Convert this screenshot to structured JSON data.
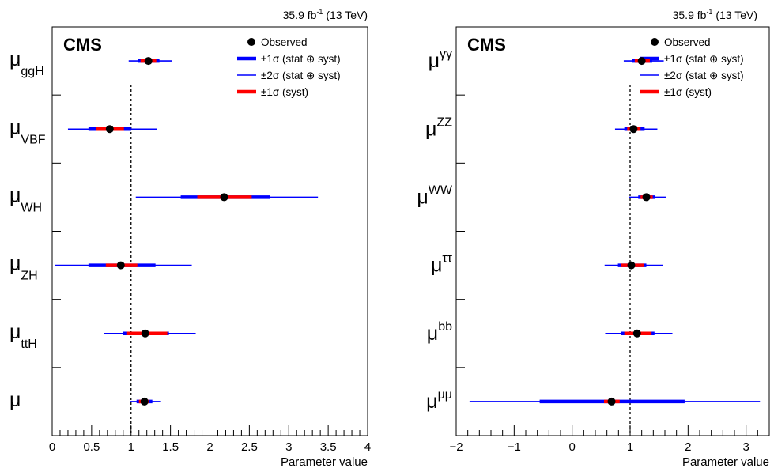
{
  "chart_data": [
    {
      "type": "errorbar",
      "header": "35.9 fb^-1 (13 TeV)",
      "lumi": "35.9 fb",
      "lumi_exp": "-1",
      "energy": "(13 TeV)",
      "experiment": "CMS",
      "xlabel": "Parameter value",
      "xlim": [
        0,
        4
      ],
      "xticks": [
        "0",
        "0.5",
        "1",
        "1.5",
        "2",
        "2.5",
        "3",
        "3.5",
        "4"
      ],
      "xticks_values": [
        0,
        0.5,
        1,
        1.5,
        2,
        2.5,
        3,
        3.5,
        4
      ],
      "reference_line": 1,
      "legend": {
        "placement": "top-right",
        "entries": [
          {
            "label": "Observed",
            "style": "marker"
          },
          {
            "label": "±1σ (stat ⊕ syst)",
            "style": "thick-blue"
          },
          {
            "label": "±2σ (stat ⊕ syst)",
            "style": "thin-blue"
          },
          {
            "label": "±1σ (syst)",
            "style": "thick-red"
          }
        ]
      },
      "points": [
        {
          "label": "μ",
          "sub": "ggH",
          "sup": "",
          "value": 1.22,
          "stat_syst_1s": [
            1.09,
            1.36
          ],
          "stat_syst_2s": [
            0.97,
            1.52
          ],
          "syst_1s": [
            1.12,
            1.32
          ]
        },
        {
          "label": "μ",
          "sub": "VBF",
          "sup": "",
          "value": 0.73,
          "stat_syst_1s": [
            0.46,
            1.0
          ],
          "stat_syst_2s": [
            0.2,
            1.33
          ],
          "syst_1s": [
            0.56,
            0.91
          ]
        },
        {
          "label": "μ",
          "sub": "WH",
          "sup": "",
          "value": 2.18,
          "stat_syst_1s": [
            1.63,
            2.76
          ],
          "stat_syst_2s": [
            1.06,
            3.37
          ],
          "syst_1s": [
            1.84,
            2.53
          ]
        },
        {
          "label": "μ",
          "sub": "ZH",
          "sup": "",
          "value": 0.87,
          "stat_syst_1s": [
            0.46,
            1.31
          ],
          "stat_syst_2s": [
            0.03,
            1.77
          ],
          "syst_1s": [
            0.68,
            1.08
          ]
        },
        {
          "label": "μ",
          "sub": "ttH",
          "sup": "",
          "value": 1.18,
          "stat_syst_1s": [
            0.9,
            1.48
          ],
          "stat_syst_2s": [
            0.66,
            1.82
          ],
          "syst_1s": [
            0.95,
            1.46
          ]
        },
        {
          "label": "μ",
          "sub": "",
          "sup": "",
          "value": 1.17,
          "stat_syst_1s": [
            1.07,
            1.27
          ],
          "stat_syst_2s": [
            0.99,
            1.38
          ],
          "syst_1s": [
            1.1,
            1.23
          ]
        }
      ]
    },
    {
      "type": "errorbar",
      "header": "35.9 fb^-1 (13 TeV)",
      "lumi": "35.9 fb",
      "lumi_exp": "-1",
      "energy": "(13 TeV)",
      "experiment": "CMS",
      "xlabel": "Parameter value",
      "xlim": [
        -2,
        3.4
      ],
      "xticks": [
        "−2",
        "−1",
        "0",
        "1",
        "2",
        "3"
      ],
      "xticks_values": [
        -2,
        -1,
        0,
        1,
        2,
        3
      ],
      "reference_line": 1,
      "legend": {
        "placement": "top-right",
        "entries": [
          {
            "label": "Observed",
            "style": "marker"
          },
          {
            "label": "±1σ (stat ⊕ syst)",
            "style": "thick-blue"
          },
          {
            "label": "±2σ (stat ⊕ syst)",
            "style": "thin-blue"
          },
          {
            "label": "±1σ (syst)",
            "style": "thick-red"
          }
        ]
      },
      "points": [
        {
          "label": "μ",
          "sub": "",
          "sup": "γγ",
          "value": 1.2,
          "stat_syst_1s": [
            1.03,
            1.38
          ],
          "stat_syst_2s": [
            0.89,
            1.58
          ],
          "syst_1s": [
            1.08,
            1.34
          ]
        },
        {
          "label": "μ",
          "sub": "",
          "sup": "ZZ",
          "value": 1.06,
          "stat_syst_1s": [
            0.9,
            1.25
          ],
          "stat_syst_2s": [
            0.74,
            1.47
          ],
          "syst_1s": [
            0.95,
            1.18
          ]
        },
        {
          "label": "μ",
          "sub": "",
          "sup": "WW",
          "value": 1.28,
          "stat_syst_1s": [
            1.14,
            1.43
          ],
          "stat_syst_2s": [
            0.98,
            1.62
          ],
          "syst_1s": [
            1.18,
            1.39
          ]
        },
        {
          "label": "μ",
          "sub": "",
          "sup": "ττ",
          "value": 1.02,
          "stat_syst_1s": [
            0.79,
            1.28
          ],
          "stat_syst_2s": [
            0.56,
            1.57
          ],
          "syst_1s": [
            0.85,
            1.24
          ]
        },
        {
          "label": "μ",
          "sub": "",
          "sup": "bb",
          "value": 1.12,
          "stat_syst_1s": [
            0.84,
            1.42
          ],
          "stat_syst_2s": [
            0.57,
            1.73
          ],
          "syst_1s": [
            0.9,
            1.37
          ]
        },
        {
          "label": "μ",
          "sub": "",
          "sup": "μμ",
          "value": 0.68,
          "stat_syst_1s": [
            -0.56,
            1.94
          ],
          "stat_syst_2s": [
            -1.77,
            3.24
          ],
          "syst_1s": [
            0.55,
            0.82
          ]
        }
      ]
    }
  ]
}
